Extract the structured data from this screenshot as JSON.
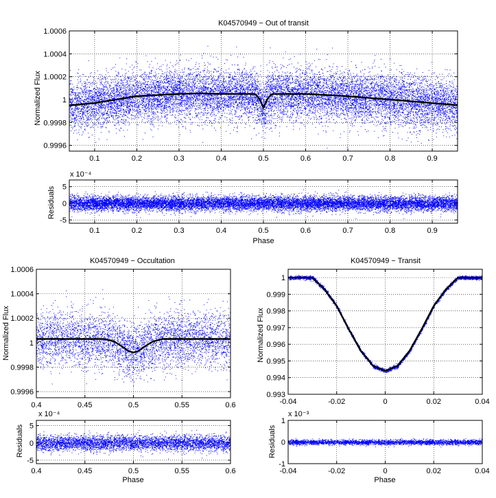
{
  "colors": {
    "points": "#0000ff",
    "model": "#000000",
    "grid": "#000000",
    "axes": "#000000",
    "background": "#ffffff"
  },
  "chart_data": [
    {
      "id": "out",
      "type": "scatter",
      "title": "K04570949 − Out of transit",
      "xlabel": "",
      "ylabel": "Normalized Flux",
      "xlim": [
        0.04,
        0.96
      ],
      "ylim": [
        0.99955,
        1.0006
      ],
      "xticks": [
        0.1,
        0.2,
        0.3,
        0.4,
        0.5,
        0.6,
        0.7,
        0.8,
        0.9
      ],
      "xtick_labels": [
        "0.1",
        "0.2",
        "0.3",
        "0.4",
        "0.5",
        "0.6",
        "0.7",
        "0.8",
        "0.9"
      ],
      "yticks": [
        0.9996,
        0.9998,
        1.0,
        1.0002,
        1.0004,
        1.0006
      ],
      "ytick_labels": [
        "0.9996",
        "0.9998",
        "1",
        "1.0002",
        "1.0004",
        "1.0006"
      ],
      "grid": true,
      "points_summary": {
        "n": 13000,
        "center": 1.0,
        "sigma": 0.00011
      },
      "series": [
        {
          "kind": "model",
          "x": [
            0.04,
            0.1,
            0.2,
            0.3,
            0.35,
            0.4,
            0.46,
            0.48,
            0.49,
            0.5,
            0.51,
            0.52,
            0.54,
            0.6,
            0.7,
            0.8,
            0.9,
            0.96
          ],
          "y": [
            0.99995,
            0.99997,
            1.00003,
            1.00005,
            1.000055,
            1.00005,
            1.00005,
            1.00005,
            1.00001,
            0.99993,
            1.00001,
            1.00005,
            1.00005,
            1.00005,
            1.00003,
            1.0,
            0.99997,
            0.99995
          ]
        }
      ]
    },
    {
      "id": "out_res",
      "type": "scatter",
      "title": "",
      "xlabel": "Phase",
      "ylabel": "Residuals",
      "xlim": [
        0.04,
        0.96
      ],
      "ylim": [
        -6,
        7
      ],
      "xticks": [
        0.1,
        0.2,
        0.3,
        0.4,
        0.5,
        0.6,
        0.7,
        0.8,
        0.9
      ],
      "xtick_labels": [
        "0.1",
        "0.2",
        "0.3",
        "0.4",
        "0.5",
        "0.6",
        "0.7",
        "0.8",
        "0.9"
      ],
      "yticks": [
        -5,
        0,
        5
      ],
      "ytick_labels": [
        "-5",
        "0",
        "5"
      ],
      "exponent_label": "x 10⁻⁴",
      "grid": true,
      "points_summary": {
        "n": 13000,
        "center": 0,
        "sigma": 1.1
      }
    },
    {
      "id": "occ",
      "type": "scatter",
      "title": "K04570949 − Occultation",
      "xlabel": "",
      "ylabel": "Normalized Flux",
      "xlim": [
        0.4,
        0.6
      ],
      "ylim": [
        0.99955,
        1.0006
      ],
      "xticks": [
        0.4,
        0.45,
        0.5,
        0.55,
        0.6
      ],
      "xtick_labels": [
        "0.4",
        "0.45",
        "0.5",
        "0.55",
        "0.6"
      ],
      "yticks": [
        0.9996,
        0.9998,
        1.0,
        1.0002,
        1.0004,
        1.0006
      ],
      "ytick_labels": [
        "0.9996",
        "0.9998",
        "1",
        "1.0002",
        "1.0004",
        "1.0006"
      ],
      "grid": true,
      "points_summary": {
        "n": 4500,
        "center": 1.00003,
        "sigma": 0.00011
      },
      "series": [
        {
          "kind": "model",
          "x": [
            0.4,
            0.47,
            0.48,
            0.49,
            0.495,
            0.5,
            0.505,
            0.51,
            0.52,
            0.53,
            0.6
          ],
          "y": [
            1.00003,
            1.00003,
            1.00001,
            0.99996,
            0.99993,
            0.99992,
            0.99993,
            0.99996,
            1.00001,
            1.00003,
            1.00003
          ]
        }
      ]
    },
    {
      "id": "occ_res",
      "type": "scatter",
      "title": "",
      "xlabel": "Phase",
      "ylabel": "Residuals",
      "xlim": [
        0.4,
        0.6
      ],
      "ylim": [
        -6,
        6.5
      ],
      "xticks": [
        0.4,
        0.45,
        0.5,
        0.55,
        0.6
      ],
      "xtick_labels": [
        "0.4",
        "0.45",
        "0.5",
        "0.55",
        "0.6"
      ],
      "yticks": [
        -5,
        0,
        5
      ],
      "ytick_labels": [
        "-5",
        "0",
        "5"
      ],
      "exponent_label": "x 10⁻⁴",
      "grid": true,
      "points_summary": {
        "n": 4500,
        "center": 0,
        "sigma": 1.1
      }
    },
    {
      "id": "tr",
      "type": "scatter",
      "title": "K04570949 − Transit",
      "xlabel": "",
      "ylabel": "Normalized Flux",
      "xlim": [
        -0.04,
        0.04
      ],
      "ylim": [
        0.993,
        1.0005
      ],
      "xticks": [
        -0.04,
        -0.02,
        0,
        0.02,
        0.04
      ],
      "xtick_labels": [
        "-0.04",
        "-0.02",
        "0",
        "0.02",
        "0.04"
      ],
      "yticks": [
        0.993,
        0.994,
        0.995,
        0.996,
        0.997,
        0.998,
        0.999,
        1.0
      ],
      "ytick_labels": [
        "0.993",
        "0.994",
        "0.995",
        "0.996",
        "0.997",
        "0.998",
        "0.999",
        "1"
      ],
      "grid": true,
      "points_summary": {
        "n": 3000,
        "sigma": 6e-05
      },
      "series": [
        {
          "kind": "model",
          "x": [
            -0.04,
            -0.03,
            -0.025,
            -0.02,
            -0.015,
            -0.01,
            -0.005,
            0,
            0.005,
            0.01,
            0.015,
            0.02,
            0.025,
            0.03,
            0.04
          ],
          "y": [
            1.0,
            1.0,
            0.9993,
            0.9983,
            0.9969,
            0.9956,
            0.9947,
            0.9944,
            0.9947,
            0.9956,
            0.9969,
            0.9983,
            0.9993,
            1.0,
            1.0
          ]
        }
      ]
    },
    {
      "id": "tr_res",
      "type": "scatter",
      "title": "",
      "xlabel": "Phase",
      "ylabel": "Residuals",
      "xlim": [
        -0.04,
        0.04
      ],
      "ylim": [
        -1,
        1
      ],
      "xticks": [
        -0.04,
        -0.02,
        0,
        0.02,
        0.04
      ],
      "xtick_labels": [
        "-0.04",
        "-0.02",
        "0",
        "0.02",
        "0.04"
      ],
      "yticks": [
        -1,
        0,
        1
      ],
      "ytick_labels": [
        "-1",
        "0",
        "1"
      ],
      "exponent_label": "x 10⁻³",
      "grid": true,
      "points_summary": {
        "n": 3000,
        "center": 0,
        "sigma": 0.06
      }
    }
  ]
}
